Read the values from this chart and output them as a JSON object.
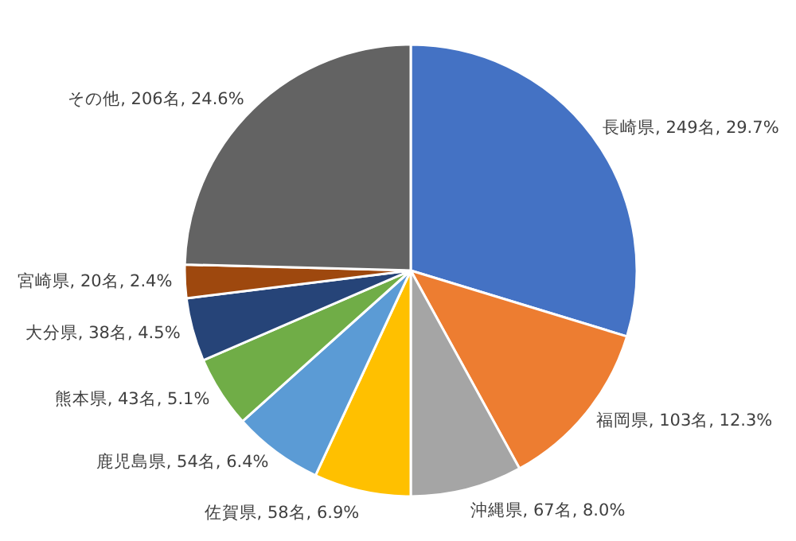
{
  "chart_data": {
    "type": "pie",
    "categories": [
      "長崎県",
      "福岡県",
      "沖縄県",
      "佐賀県",
      "鹿児島県",
      "熊本県",
      "大分県",
      "宮崎県",
      "その他"
    ],
    "values": [
      249,
      103,
      67,
      58,
      54,
      43,
      38,
      20,
      206
    ],
    "value_labels": [
      "249名, 29.7%",
      "103名, 12.3%",
      "67名, 8.0%",
      "58名, 6.9%",
      "54名, 6.4%",
      "43名, 5.1%",
      "38名, 4.5%",
      "20名, 2.4%",
      "206名, 24.6%"
    ],
    "colors": [
      "#4472c4",
      "#ed7d31",
      "#a5a5a5",
      "#ffc000",
      "#5b9bd5",
      "#70ad47",
      "#264478",
      "#9e480e",
      "#636363"
    ]
  }
}
